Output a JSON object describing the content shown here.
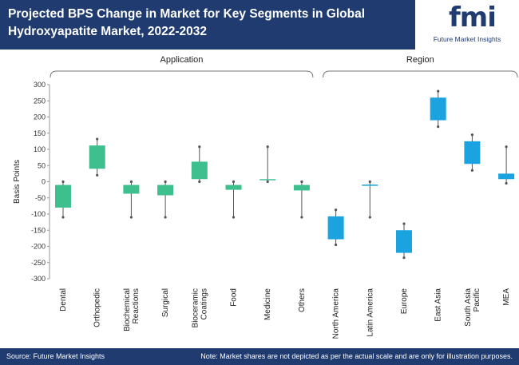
{
  "header": {
    "title": "Projected BPS Change in Market for Key Segments in Global Hydroxyapatite Market, 2022-2032",
    "logo_mark": "fmi",
    "logo_text": "Future Market Insights"
  },
  "footer": {
    "source": "Source: Future Market Insights",
    "note": "Note: Market shares are not depicted as per the actual scale and are only for illustration purposes."
  },
  "colors": {
    "application": "#3dbf8e",
    "region": "#1ba3e0",
    "header": "#1f3b70"
  },
  "chart_data": {
    "type": "boxplot",
    "ylabel": "Basis Points",
    "ylim": [
      -300,
      300
    ],
    "yticks": [
      300,
      250,
      200,
      150,
      100,
      50,
      0,
      -50,
      -100,
      -150,
      -200,
      -250,
      -300
    ],
    "groups": [
      {
        "label": "Application",
        "categories": [
          0,
          1,
          2,
          3,
          4,
          5,
          6,
          7
        ]
      },
      {
        "label": "Region",
        "categories": [
          8,
          9,
          10,
          11,
          12,
          13
        ]
      }
    ],
    "items": [
      {
        "category": [
          "Dental"
        ],
        "group": "Application",
        "min": -110,
        "q1": -80,
        "q3": -10,
        "max": 0
      },
      {
        "category": [
          "Orthopedic"
        ],
        "group": "Application",
        "min": 20,
        "q1": 40,
        "q3": 112,
        "max": 132
      },
      {
        "category": [
          "Biochemical",
          "Reactions"
        ],
        "group": "Application",
        "min": -110,
        "q1": -37,
        "q3": -10,
        "max": 0
      },
      {
        "category": [
          "Surgical"
        ],
        "group": "Application",
        "min": -110,
        "q1": -42,
        "q3": -10,
        "max": 0
      },
      {
        "category": [
          "Bioceramic",
          "Coatings"
        ],
        "group": "Application",
        "min": 0,
        "q1": 8,
        "q3": 62,
        "max": 108
      },
      {
        "category": [
          "Food"
        ],
        "group": "Application",
        "min": -110,
        "q1": -25,
        "q3": -10,
        "max": 0
      },
      {
        "category": [
          "Medicine"
        ],
        "group": "Application",
        "min": 0,
        "q1": 7,
        "q3": 8,
        "max": 108
      },
      {
        "category": [
          "Others"
        ],
        "group": "Application",
        "min": -110,
        "q1": -27,
        "q3": -10,
        "max": 0
      },
      {
        "category": [
          "North America"
        ],
        "group": "Region",
        "min": -195,
        "q1": -178,
        "q3": -107,
        "max": -87
      },
      {
        "category": [
          "Latin America"
        ],
        "group": "Region",
        "min": -110,
        "q1": -11,
        "q3": -9,
        "max": 0
      },
      {
        "category": [
          "Europe"
        ],
        "group": "Region",
        "min": -235,
        "q1": -220,
        "q3": -150,
        "max": -130
      },
      {
        "category": [
          "East Asia"
        ],
        "group": "Region",
        "min": 170,
        "q1": 190,
        "q3": 260,
        "max": 280
      },
      {
        "category": [
          "South Asia",
          "Pacific"
        ],
        "group": "Region",
        "min": 35,
        "q1": 55,
        "q3": 125,
        "max": 145
      },
      {
        "category": [
          "MEA"
        ],
        "group": "Region",
        "min": -5,
        "q1": 8,
        "q3": 25,
        "max": 108
      }
    ]
  }
}
